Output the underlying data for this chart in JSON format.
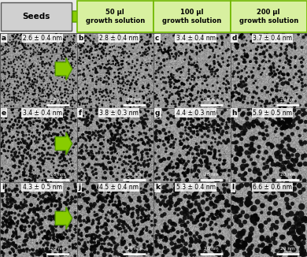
{
  "header_labels": [
    "Seeds",
    "50 μl\ngrowth solution",
    "100 μl\ngrowth solution",
    "200 μl\ngrowth solution"
  ],
  "panel_labels": [
    "a",
    "b",
    "c",
    "d",
    "e",
    "f",
    "g",
    "h",
    "i",
    "j",
    "k",
    "l"
  ],
  "panel_sizes": [
    "2.6 ± 0.4 nm",
    "2.8 ± 0.4 nm",
    "3.4 ± 0.4 nm",
    "3.7 ± 0.4 nm",
    "3.4 ± 0.4 nm",
    "3.8 ± 0.3 nm",
    "4.4 ± 0.3 nm",
    "5.9 ± 0.5 nm",
    "4.3 ± 0.5 nm",
    "4.5 ± 0.4 nm",
    "5.3 ± 0.4 nm",
    "6.6 ± 0.6 nm"
  ],
  "bg_color": "#e8e8e8",
  "seeds_box_color": "#d0d0d0",
  "seeds_box_edge": "#555555",
  "header_box_color": "#d8f0a0",
  "header_box_edge": "#70b800",
  "arrow_color": "#88cc00",
  "arrow_edge": "#559900",
  "noise_seed": 42,
  "n_dots_per_panel": [
    700,
    500,
    350,
    280,
    550,
    450,
    350,
    260,
    450,
    400,
    320,
    240
  ],
  "dot_size_base": [
    2.5,
    3.5,
    5.0,
    6.5,
    5.0,
    6.0,
    8.0,
    14.0,
    8.0,
    9.0,
    12.0,
    18.0
  ],
  "bg_mean": [
    148,
    150,
    152,
    152,
    150,
    150,
    152,
    153,
    150,
    150,
    152,
    153
  ],
  "bg_std": [
    20,
    20,
    20,
    20,
    20,
    20,
    20,
    20,
    20,
    20,
    20,
    20
  ]
}
